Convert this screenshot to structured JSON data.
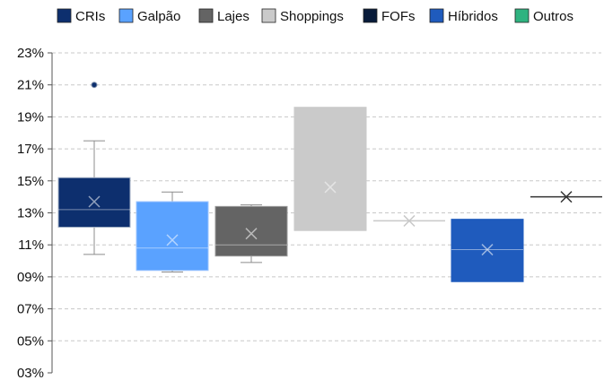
{
  "chart_data": {
    "type": "box",
    "title": "",
    "xlabel": "",
    "ylabel": "",
    "y_unit": "%",
    "ylim": [
      3,
      23
    ],
    "y_ticks": [
      3,
      5,
      7,
      9,
      11,
      13,
      15,
      17,
      19,
      21,
      23
    ],
    "y_tick_labels": [
      "03%",
      "05%",
      "07%",
      "09%",
      "11%",
      "13%",
      "15%",
      "17%",
      "19%",
      "21%",
      "23%"
    ],
    "grid": "horizontal dashed",
    "legend_position": "top",
    "legend": [
      {
        "name": "CRIs",
        "color": "#0d2f6e"
      },
      {
        "name": "Galpão",
        "color": "#5aa2ff"
      },
      {
        "name": "Lajes",
        "color": "#646464"
      },
      {
        "name": "Shoppings",
        "color": "#cacaca"
      },
      {
        "name": "FOFs",
        "color": "#081b3a"
      },
      {
        "name": "Híbridos",
        "color": "#1f5bbd"
      },
      {
        "name": "Outros",
        "color": "#2fb380"
      }
    ],
    "series": [
      {
        "name": "CRIs",
        "color": "#0d2f6e",
        "border": "#a9b6c8",
        "min": 10.4,
        "q1": 12.1,
        "median": 13.2,
        "q3": 15.2,
        "max": 17.5,
        "mean": 13.7,
        "outliers": [
          21.0
        ]
      },
      {
        "name": "Galpão",
        "color": "#5aa2ff",
        "border": "#9ec6ff",
        "min": 9.3,
        "q1": 9.4,
        "median": 10.8,
        "q3": 13.7,
        "max": 14.3,
        "mean": 11.3,
        "outliers": []
      },
      {
        "name": "Lajes",
        "color": "#646464",
        "border": "#9a9a9a",
        "min": 9.9,
        "q1": 10.3,
        "median": 11.0,
        "q3": 13.4,
        "max": 13.5,
        "mean": 11.7,
        "outliers": []
      },
      {
        "name": "Shoppings",
        "color": "#cacaca",
        "border": "#cacaca",
        "min": 11.9,
        "q1": 11.9,
        "median": 11.9,
        "q3": 19.6,
        "max": 19.6,
        "mean": 14.6,
        "outliers": []
      },
      {
        "name": "FOFs",
        "color": "#081b3a",
        "border": "#c9c9c9",
        "min": 12.5,
        "q1": 12.5,
        "median": 12.5,
        "q3": 12.5,
        "max": 12.5,
        "mean": 12.5,
        "outliers": []
      },
      {
        "name": "Híbridos",
        "color": "#1f5bbd",
        "border": "#1f5bbd",
        "min": 8.7,
        "q1": 8.7,
        "median": 10.7,
        "q3": 12.6,
        "max": 12.6,
        "mean": 10.7,
        "outliers": []
      },
      {
        "name": "Outros",
        "color": "#2fb380",
        "border": "#333333",
        "min": 14.0,
        "q1": 14.0,
        "median": 14.0,
        "q3": 14.0,
        "max": 14.0,
        "mean": 14.0,
        "outliers": []
      }
    ]
  }
}
